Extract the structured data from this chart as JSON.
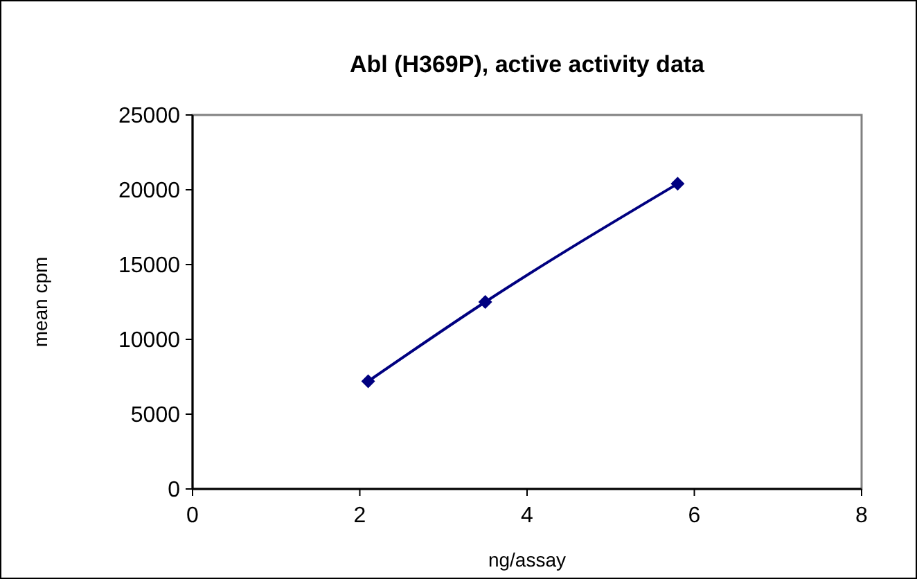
{
  "chart_data": {
    "type": "line",
    "title": "Abl (H369P), active activity data",
    "xlabel": "ng/assay",
    "ylabel": "mean cpm",
    "x": [
      2.1,
      3.5,
      5.8
    ],
    "series": [
      {
        "color": "#000080",
        "values": [
          7200,
          12500,
          20400
        ]
      }
    ],
    "xlim": [
      0,
      8
    ],
    "xticks": [
      0,
      2,
      4,
      6,
      8
    ],
    "ylim": [
      0,
      25000
    ],
    "yticks": [
      0,
      5000,
      10000,
      15000,
      20000,
      25000
    ],
    "marker": "diamond",
    "line_style": "solid"
  }
}
